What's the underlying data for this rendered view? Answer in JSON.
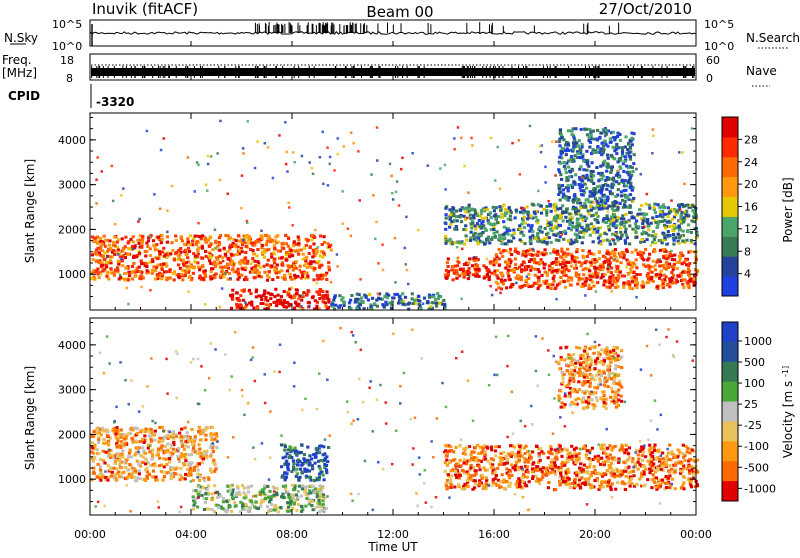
{
  "header": {
    "station": "Inuvik (fitACF)",
    "beam": "Beam 00",
    "date": "27/Oct/2010"
  },
  "noise_panel": {
    "left_label": "N.Sky",
    "right_label": "N.Search",
    "left_ticks": [
      "10^5",
      "10^0"
    ],
    "right_ticks": [
      "10^5",
      "10^0"
    ]
  },
  "freq_panel": {
    "left_label_line1": "Freq.",
    "left_label_line2": "[MHz]",
    "right_label": "Nave",
    "left_ticks": [
      "18",
      "8"
    ],
    "right_ticks": [
      "60",
      "0"
    ]
  },
  "cpid": {
    "label": "CPID",
    "value": "-3320"
  },
  "colors": {
    "scale_power": [
      "#2040e0",
      "#23449a",
      "#3a7a55",
      "#4aa66a",
      "#e6c800",
      "#ff9a10",
      "#ff6a00",
      "#ff2a00",
      "#e00000"
    ],
    "scale_velocity": [
      "#2040c8",
      "#244e9a",
      "#357a55",
      "#4aa83a",
      "#c0c0c0",
      "#e8c25a",
      "#ff9a10",
      "#ff6a00",
      "#e00000"
    ]
  },
  "chart_data": [
    {
      "type": "heatmap",
      "name": "power",
      "ylabel": "Slant Range [km]",
      "yticks": [
        "1000",
        "2000",
        "3000",
        "4000"
      ],
      "ylim": [
        200,
        4600
      ],
      "xlim": [
        0,
        24
      ],
      "colorbar_label": "Power [dB]",
      "colorbar_ticks": [
        "4",
        "8",
        "12",
        "16",
        "20",
        "24",
        "28"
      ],
      "colorbar_range": [
        0,
        30
      ],
      "echo_regions": [
        {
          "t0": 0.0,
          "t1": 9.5,
          "r0": 900,
          "r1": 1900,
          "level": 0.75
        },
        {
          "t0": 5.5,
          "t1": 9.4,
          "r0": 250,
          "r1": 700,
          "level": 0.95
        },
        {
          "t0": 9.5,
          "t1": 14.0,
          "r0": 250,
          "r1": 600,
          "level": 0.25
        },
        {
          "t0": 14.0,
          "t1": 16.0,
          "r0": 900,
          "r1": 1400,
          "level": 0.85
        },
        {
          "t0": 16.0,
          "t1": 24.0,
          "r0": 700,
          "r1": 1600,
          "level": 0.8
        },
        {
          "t0": 14.0,
          "t1": 24.0,
          "r0": 1700,
          "r1": 2600,
          "level": 0.3
        },
        {
          "t0": 18.5,
          "t1": 21.5,
          "r0": 2600,
          "r1": 4300,
          "level": 0.2
        }
      ]
    },
    {
      "type": "heatmap",
      "name": "velocity",
      "ylabel": "Slant Range [km]",
      "yticks": [
        "1000",
        "2000",
        "3000",
        "4000"
      ],
      "ylim": [
        200,
        4600
      ],
      "xlim": [
        0,
        24
      ],
      "xticks": [
        "00:00",
        "04:00",
        "08:00",
        "12:00",
        "16:00",
        "20:00",
        "00:00"
      ],
      "xlabel": "Time UT",
      "colorbar_label": "Velocity [m s^-1]",
      "colorbar_ticks": [
        "1000",
        "500",
        "100",
        "25",
        "-25",
        "-100",
        "-500",
        "-1000"
      ],
      "echo_regions": [
        {
          "t0": 0.0,
          "t1": 5.0,
          "r0": 1000,
          "r1": 2200,
          "level": 0.7
        },
        {
          "t0": 4.0,
          "t1": 9.3,
          "r0": 300,
          "r1": 900,
          "level": 0.45
        },
        {
          "t0": 7.5,
          "t1": 9.4,
          "r0": 1000,
          "r1": 1800,
          "level": 0.15
        },
        {
          "t0": 14.0,
          "t1": 24.0,
          "r0": 800,
          "r1": 1800,
          "level": 0.8
        },
        {
          "t0": 18.5,
          "t1": 21.0,
          "r0": 2600,
          "r1": 4000,
          "level": 0.75
        }
      ]
    }
  ]
}
